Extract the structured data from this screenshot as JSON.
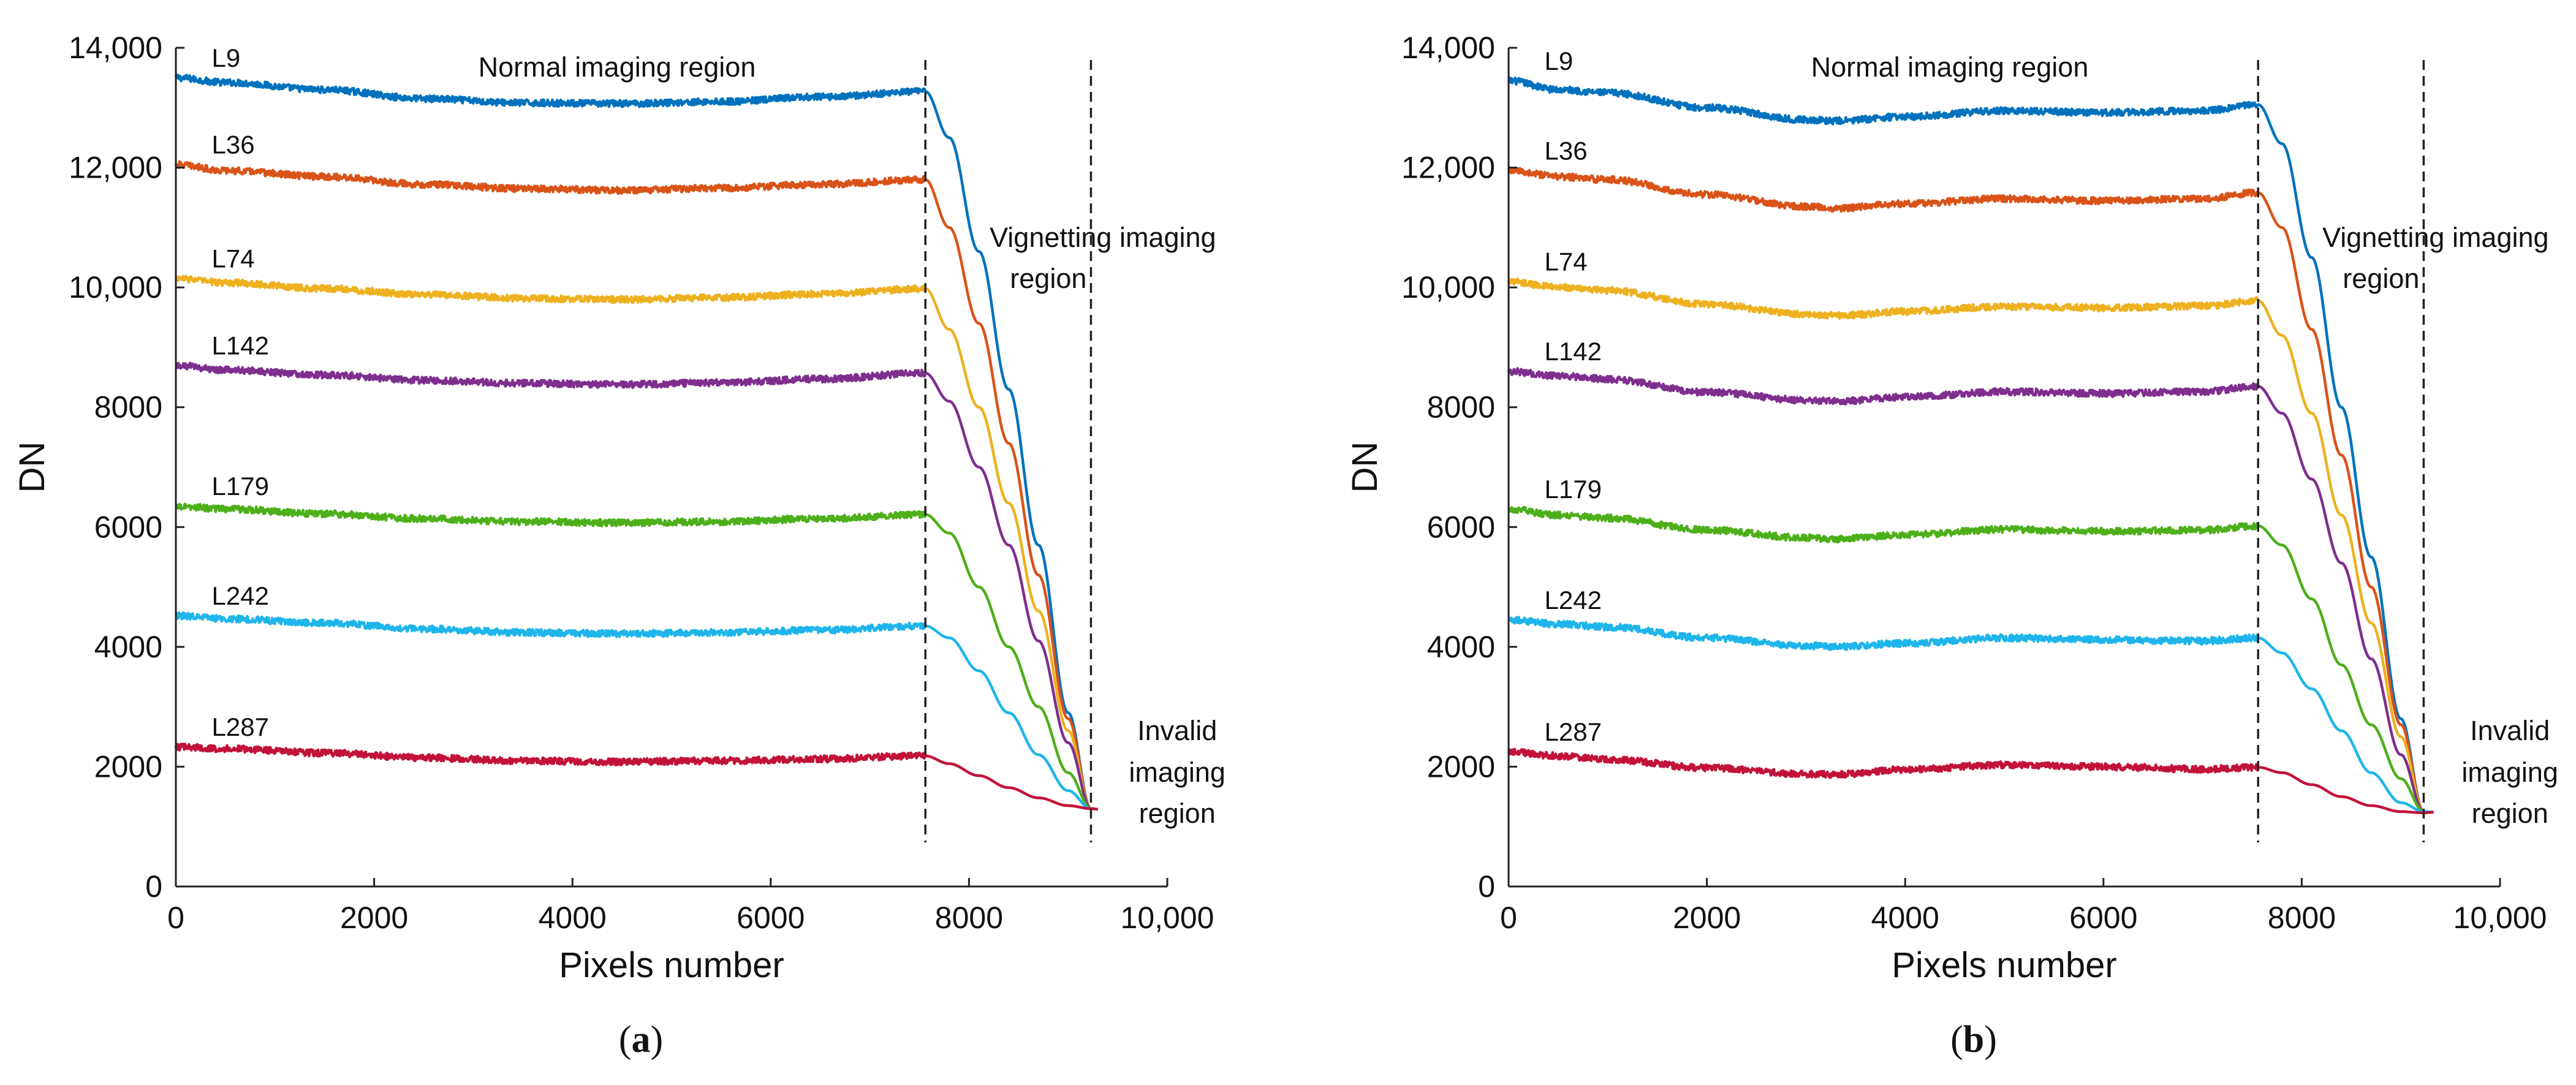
{
  "chart_data": [
    {
      "type": "line",
      "panel_label": "a",
      "xlabel": "Pixels number",
      "ylabel": "DN",
      "xlim": [
        0,
        10000
      ],
      "ylim": [
        0,
        14000
      ],
      "x_ticks": [
        0,
        2000,
        4000,
        6000,
        8000,
        10000
      ],
      "x_tick_labels": [
        "0",
        "2000",
        "4000",
        "6000",
        "8000",
        "10,000"
      ],
      "y_ticks": [
        0,
        2000,
        4000,
        6000,
        8000,
        10000,
        12000,
        14000
      ],
      "y_tick_labels": [
        "0",
        "2000",
        "4000",
        "6000",
        "8000",
        "10,000",
        "12,000",
        "14,000"
      ],
      "grid": false,
      "vlines": [
        7560,
        9230
      ],
      "annotations": {
        "normal": "Normal imaging region",
        "vignetting": [
          "Vignetting imaging",
          "region"
        ],
        "invalid": [
          "Invalid",
          "imaging",
          "region"
        ]
      },
      "series": [
        {
          "name": "L9",
          "color": "#0072BD",
          "x": [
            0,
            500,
            1500,
            2500,
            3500,
            4500,
            5500,
            6500,
            7560,
            7800,
            8100,
            8400,
            8700,
            9000,
            9230,
            9300
          ],
          "values": [
            13500,
            13420,
            13300,
            13150,
            13080,
            13070,
            13100,
            13180,
            13270,
            12500,
            10600,
            8300,
            5700,
            2900,
            1300,
            1290
          ]
        },
        {
          "name": "L36",
          "color": "#D95319",
          "x": [
            0,
            500,
            1500,
            2500,
            3500,
            4500,
            5500,
            6500,
            7560,
            7800,
            8100,
            8400,
            8700,
            9000,
            9230,
            9300
          ],
          "values": [
            12050,
            11950,
            11850,
            11720,
            11650,
            11620,
            11660,
            11720,
            11800,
            11000,
            9400,
            7400,
            5200,
            2800,
            1300,
            1290
          ]
        },
        {
          "name": "L74",
          "color": "#EDB120",
          "x": [
            0,
            500,
            1500,
            2500,
            3500,
            4500,
            5500,
            6500,
            7560,
            7800,
            8100,
            8400,
            8700,
            9000,
            9230,
            9300
          ],
          "values": [
            10150,
            10080,
            9980,
            9880,
            9820,
            9800,
            9830,
            9890,
            9980,
            9300,
            8000,
            6400,
            4600,
            2600,
            1300,
            1290
          ]
        },
        {
          "name": "L142",
          "color": "#7E2F8E",
          "x": [
            0,
            500,
            1500,
            2500,
            3500,
            4500,
            5500,
            6500,
            7560,
            7800,
            8100,
            8400,
            8700,
            9000,
            9230,
            9300
          ],
          "values": [
            8700,
            8620,
            8540,
            8450,
            8400,
            8380,
            8410,
            8470,
            8570,
            8100,
            7000,
            5700,
            4100,
            2400,
            1300,
            1290
          ]
        },
        {
          "name": "L179",
          "color": "#4DAF1A",
          "x": [
            0,
            500,
            1500,
            2500,
            3500,
            4500,
            5500,
            6500,
            7560,
            7800,
            8100,
            8400,
            8700,
            9000,
            9230,
            9300
          ],
          "values": [
            6350,
            6300,
            6220,
            6140,
            6090,
            6070,
            6090,
            6140,
            6210,
            5900,
            5000,
            4000,
            3000,
            1900,
            1300,
            1290
          ]
        },
        {
          "name": "L242",
          "color": "#1EB5EA",
          "x": [
            0,
            500,
            1500,
            2500,
            3500,
            4500,
            5500,
            6500,
            7560,
            7800,
            8100,
            8400,
            8700,
            9000,
            9230,
            9300
          ],
          "values": [
            4520,
            4470,
            4400,
            4300,
            4240,
            4220,
            4240,
            4280,
            4350,
            4150,
            3600,
            2900,
            2200,
            1600,
            1300,
            1290
          ]
        },
        {
          "name": "L287",
          "color": "#C2123A",
          "x": [
            0,
            500,
            1500,
            2500,
            3500,
            4500,
            5500,
            6500,
            7560,
            7800,
            8100,
            8400,
            8700,
            9000,
            9230,
            9300
          ],
          "values": [
            2330,
            2300,
            2230,
            2150,
            2100,
            2080,
            2100,
            2130,
            2180,
            2050,
            1850,
            1650,
            1480,
            1350,
            1300,
            1290
          ]
        }
      ]
    },
    {
      "type": "line",
      "panel_label": "b",
      "xlabel": "Pixels number",
      "ylabel": "DN",
      "xlim": [
        0,
        10000
      ],
      "ylim": [
        0,
        14000
      ],
      "x_ticks": [
        0,
        2000,
        4000,
        6000,
        8000,
        10000
      ],
      "x_tick_labels": [
        "0",
        "2000",
        "4000",
        "6000",
        "8000",
        "10,000"
      ],
      "y_ticks": [
        0,
        2000,
        4000,
        6000,
        8000,
        10000,
        12000,
        14000
      ],
      "y_tick_labels": [
        "0",
        "2000",
        "4000",
        "6000",
        "8000",
        "10,000",
        "12,000",
        "14,000"
      ],
      "grid": false,
      "vlines": [
        7560,
        9230
      ],
      "annotations": {
        "normal": "Normal imaging region",
        "vignetting": [
          "Vignetting imaging",
          "region"
        ],
        "invalid": [
          "Invalid",
          "imaging",
          "region"
        ]
      },
      "series": [
        {
          "name": "L9",
          "color": "#0072BD",
          "x": [
            0,
            500,
            1000,
            2000,
            3000,
            3300,
            4000,
            5000,
            6000,
            7000,
            7560,
            7800,
            8100,
            8400,
            8700,
            9000,
            9230,
            9330
          ],
          "values": [
            13450,
            13300,
            13250,
            13000,
            12800,
            12780,
            12850,
            12950,
            12920,
            12950,
            13050,
            12400,
            10500,
            8000,
            5500,
            2800,
            1250,
            1240
          ]
        },
        {
          "name": "L36",
          "color": "#D95319",
          "x": [
            0,
            500,
            1000,
            2000,
            3000,
            3300,
            4000,
            5000,
            6000,
            7000,
            7560,
            7800,
            8100,
            8400,
            8700,
            9000,
            9230,
            9330
          ],
          "values": [
            11950,
            11850,
            11800,
            11550,
            11350,
            11320,
            11400,
            11480,
            11450,
            11480,
            11580,
            11000,
            9300,
            7200,
            5000,
            2700,
            1250,
            1240
          ]
        },
        {
          "name": "L74",
          "color": "#EDB120",
          "x": [
            0,
            500,
            1000,
            2000,
            3000,
            3300,
            4000,
            5000,
            6000,
            7000,
            7560,
            7800,
            8100,
            8400,
            8700,
            9000,
            9230,
            9330
          ],
          "values": [
            10100,
            10000,
            9950,
            9720,
            9550,
            9530,
            9600,
            9680,
            9660,
            9690,
            9780,
            9200,
            7900,
            6200,
            4400,
            2500,
            1250,
            1240
          ]
        },
        {
          "name": "L142",
          "color": "#7E2F8E",
          "x": [
            0,
            500,
            1000,
            2000,
            3000,
            3300,
            4000,
            5000,
            6000,
            7000,
            7560,
            7800,
            8100,
            8400,
            8700,
            9000,
            9230,
            9330
          ],
          "values": [
            8600,
            8520,
            8470,
            8250,
            8120,
            8100,
            8170,
            8260,
            8230,
            8260,
            8350,
            7900,
            6800,
            5400,
            3800,
            2200,
            1250,
            1240
          ]
        },
        {
          "name": "L179",
          "color": "#4DAF1A",
          "x": [
            0,
            500,
            1000,
            2000,
            3000,
            3300,
            4000,
            5000,
            6000,
            7000,
            7560,
            7800,
            8100,
            8400,
            8700,
            9000,
            9230,
            9330
          ],
          "values": [
            6300,
            6200,
            6150,
            5950,
            5820,
            5800,
            5870,
            5960,
            5930,
            5950,
            6020,
            5700,
            4800,
            3700,
            2700,
            1800,
            1250,
            1240
          ]
        },
        {
          "name": "L242",
          "color": "#1EB5EA",
          "x": [
            0,
            500,
            1000,
            2000,
            3000,
            3300,
            4000,
            5000,
            6000,
            7000,
            7560,
            7800,
            8100,
            8400,
            8700,
            9000,
            9230,
            9330
          ],
          "values": [
            4450,
            4380,
            4330,
            4150,
            4020,
            4000,
            4060,
            4150,
            4120,
            4100,
            4150,
            3900,
            3300,
            2600,
            1900,
            1400,
            1250,
            1240
          ]
        },
        {
          "name": "L287",
          "color": "#C2123A",
          "x": [
            0,
            500,
            1000,
            2000,
            3000,
            3300,
            4000,
            5000,
            6000,
            7000,
            7560,
            7800,
            8100,
            8400,
            8700,
            9000,
            9230,
            9330
          ],
          "values": [
            2250,
            2180,
            2120,
            1980,
            1880,
            1870,
            1950,
            2030,
            2000,
            1960,
            1990,
            1900,
            1700,
            1500,
            1350,
            1250,
            1230,
            1240
          ]
        }
      ]
    }
  ]
}
